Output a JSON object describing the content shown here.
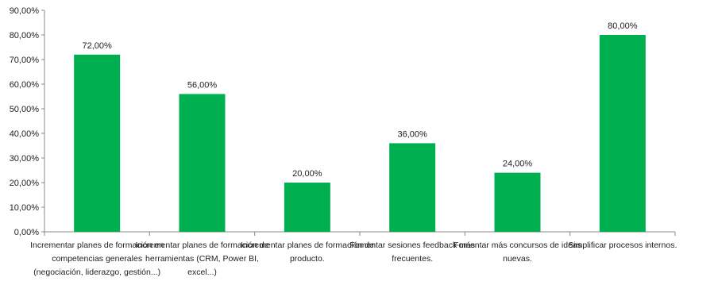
{
  "chart_data": {
    "type": "bar",
    "title": "",
    "xlabel": "",
    "ylabel": "",
    "ylim": [
      0,
      90
    ],
    "y_ticks": [
      "0,00%",
      "10,00%",
      "20,00%",
      "30,00%",
      "40,00%",
      "50,00%",
      "60,00%",
      "70,00%",
      "80,00%",
      "90,00%"
    ],
    "grid": false,
    "legend": "none",
    "bar_color": "#00B050",
    "categories": [
      [
        "Incrementar planes de formación en",
        "competencias generales",
        "(negociación, liderazgo, gestión...)"
      ],
      [
        "Incrementar planes de formación de",
        "herramientas (CRM, Power BI,",
        "excel...)"
      ],
      [
        "Incrementar planes de formación de",
        "producto."
      ],
      [
        "Fomentar sesiones feedback más",
        "frecuentes."
      ],
      [
        "Fomentar más concursos de ideas",
        "nuevas."
      ],
      [
        "Simplificar procesos internos."
      ]
    ],
    "values": [
      72,
      56,
      20,
      36,
      24,
      80
    ],
    "data_labels": [
      "72,00%",
      "56,00%",
      "20,00%",
      "36,00%",
      "24,00%",
      "80,00%"
    ]
  }
}
